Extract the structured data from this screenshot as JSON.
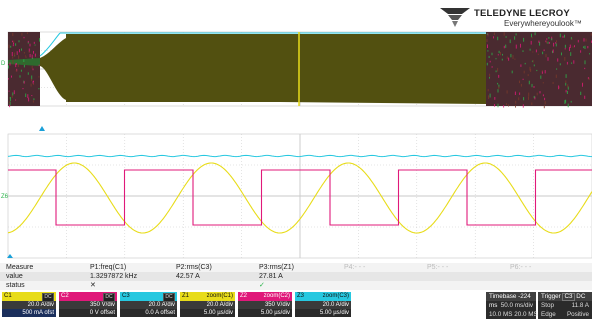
{
  "brand": {
    "name": "TELEDYNE LECROY",
    "tagline": "Everywhereyoulook™"
  },
  "grid_markers": {
    "upper_trace_label": "D",
    "lower_trace_label": "Z6"
  },
  "measurements": {
    "row_labels": [
      "Measure",
      "value",
      "status"
    ],
    "params": [
      {
        "name": "P1:freq(C1)",
        "value": "1.3297872 kHz",
        "status": "✕"
      },
      {
        "name": "P2:rms(C3)",
        "value": "42.57 A",
        "status": ""
      },
      {
        "name": "P3:rms(Z1)",
        "value": "27.81 A",
        "status": "✓"
      },
      {
        "name": "P4:- - -",
        "value": "",
        "status": ""
      },
      {
        "name": "P5:- - -",
        "value": "",
        "status": ""
      },
      {
        "name": "P6:- - -",
        "value": "",
        "status": ""
      }
    ]
  },
  "channels": [
    {
      "name": "C1",
      "badge": "DC",
      "color": "#e8dc1a",
      "text_color": "#111",
      "lines": [
        "20.0 A/div",
        "500 mA ofst"
      ]
    },
    {
      "name": "C2",
      "badge": "DC",
      "color": "#e0197a",
      "text_color": "#fff",
      "lines": [
        "350 V/div",
        "0 V offset"
      ]
    },
    {
      "name": "C3",
      "badge": "DC",
      "color": "#27c8e0",
      "text_color": "#111",
      "lines": [
        "20.0 A/div",
        "0.0 A offset"
      ]
    },
    {
      "name": "Z1",
      "badge": "zoom(C1)",
      "color": "#e8dc1a",
      "text_color": "#111",
      "lines": [
        "20.0 A/div",
        "5.00 µs/div"
      ]
    },
    {
      "name": "Z2",
      "badge": "zoom(C2)",
      "color": "#e0197a",
      "text_color": "#fff",
      "lines": [
        "350 V/div",
        "5.00 µs/div"
      ]
    },
    {
      "name": "Z3",
      "badge": "zoom(C3)",
      "color": "#27c8e0",
      "text_color": "#111",
      "lines": [
        "20.0 A/div",
        "5.00 µs/div"
      ]
    }
  ],
  "timebase": {
    "label": "Timebase",
    "delay": "-224 ms",
    "per_div": "50.0 ms/div",
    "samples": "10.0 MS",
    "rate": "20.0 MS/s"
  },
  "trigger": {
    "label": "Trigger",
    "source": "C3",
    "coupling": "DC",
    "mode": "Stop",
    "level": "11.8 A",
    "type": "Edge",
    "slope": "Positive"
  },
  "colors": {
    "yellow": "#e8dc1a",
    "magenta": "#e0197a",
    "cyan": "#27c8e0",
    "green_marker": "#2ab34a",
    "grid": "#c9c9c9"
  }
}
